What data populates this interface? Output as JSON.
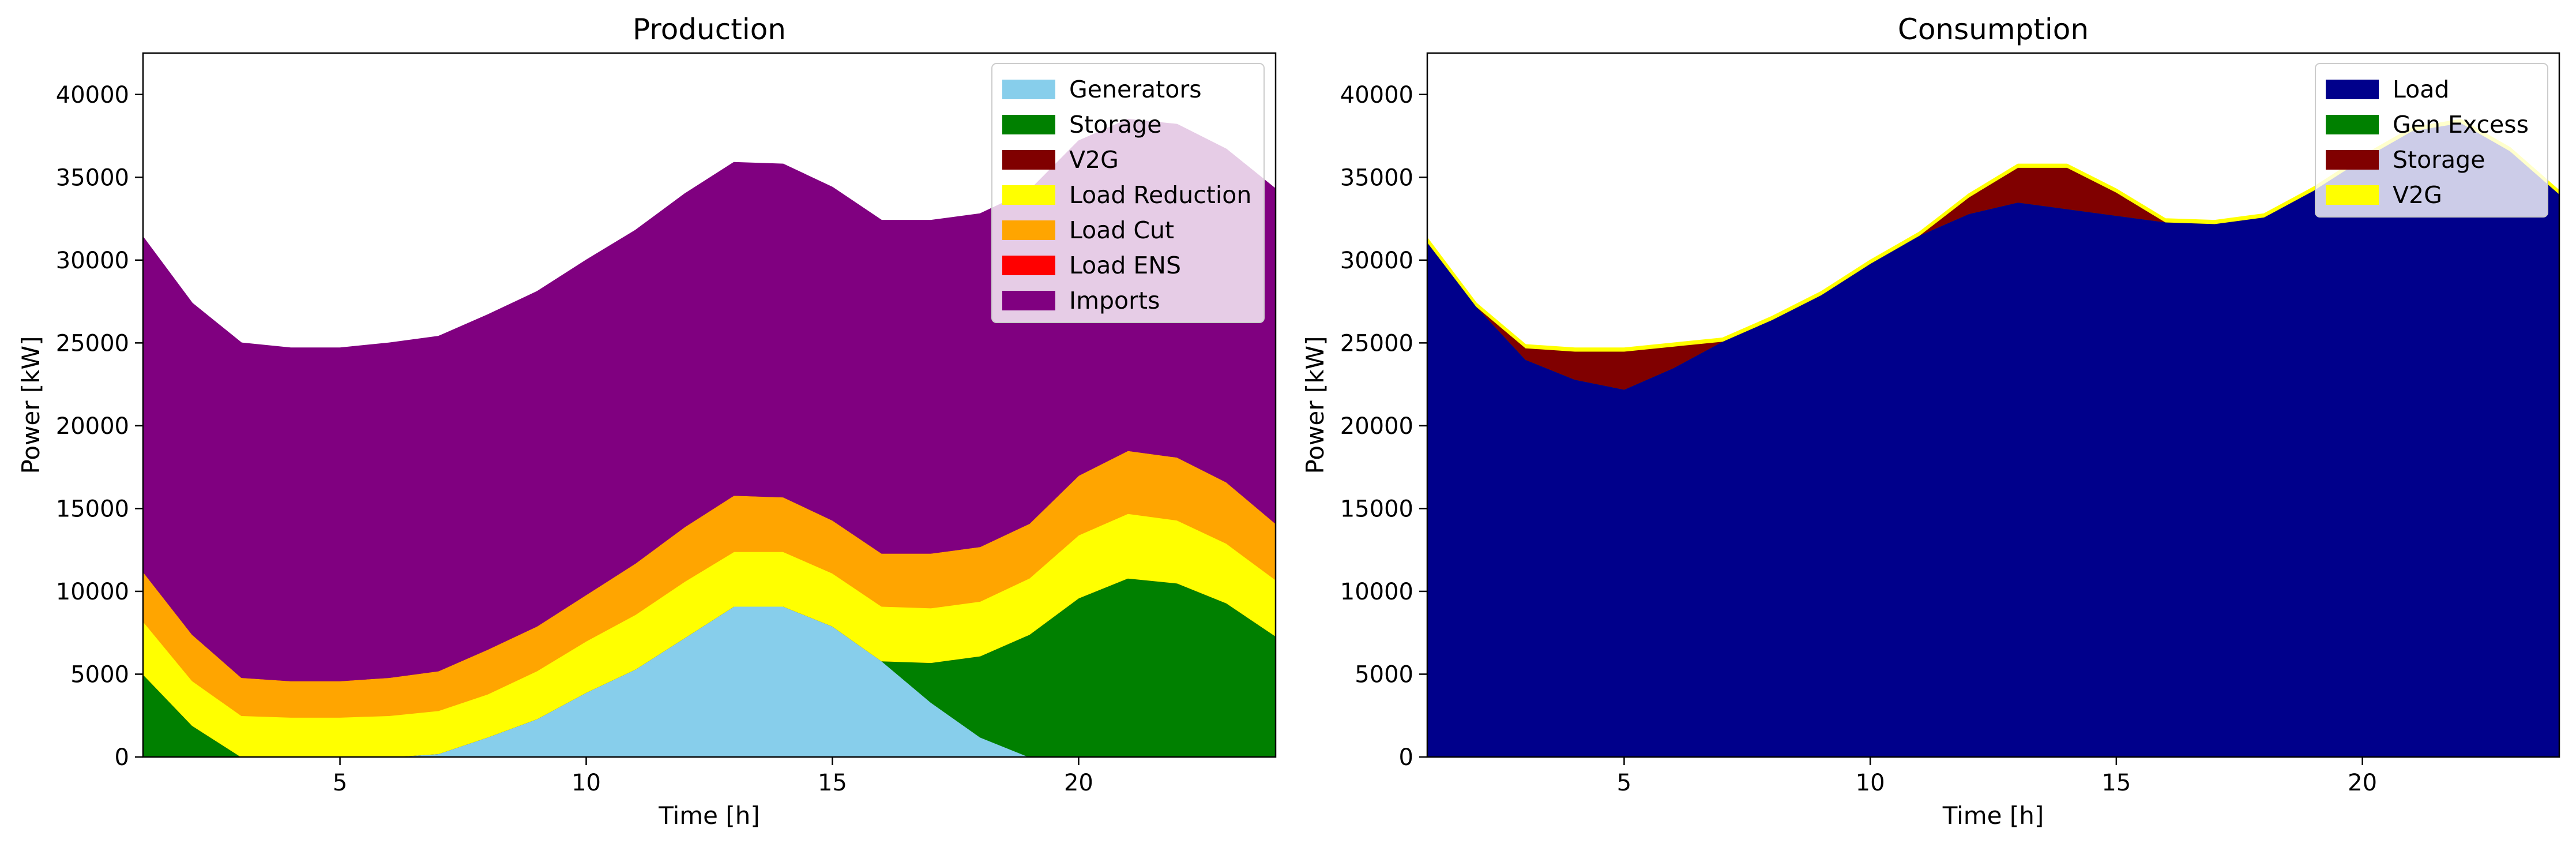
{
  "chart_data": [
    {
      "type": "area",
      "stacked": true,
      "title": "Production",
      "xlabel": "Time [h]",
      "ylabel": "Power [kW]",
      "xlim": [
        1,
        24
      ],
      "ylim": [
        0,
        42500
      ],
      "xticks": [
        5,
        10,
        15,
        20
      ],
      "yticks": [
        0,
        5000,
        10000,
        15000,
        20000,
        25000,
        30000,
        35000,
        40000
      ],
      "legend_position": "top-right",
      "x": [
        1,
        2,
        3,
        4,
        5,
        6,
        7,
        8,
        9,
        10,
        11,
        12,
        13,
        14,
        15,
        16,
        17,
        18,
        19,
        20,
        21,
        22,
        23,
        24
      ],
      "series": [
        {
          "name": "Generators",
          "color": "#87ceeb",
          "values": [
            0,
            0,
            0,
            0,
            0,
            0,
            200,
            1200,
            2300,
            3900,
            5300,
            7200,
            9100,
            9100,
            7900,
            5800,
            3300,
            1200,
            0,
            0,
            0,
            0,
            0,
            0
          ]
        },
        {
          "name": "Storage",
          "color": "#008000",
          "values": [
            5000,
            1900,
            0,
            0,
            0,
            0,
            0,
            0,
            0,
            0,
            0,
            0,
            0,
            0,
            0,
            0,
            2400,
            4900,
            7400,
            9600,
            10800,
            10500,
            9300,
            7300
          ]
        },
        {
          "name": "V2G",
          "color": "#800000",
          "values": [
            0,
            0,
            0,
            0,
            0,
            0,
            0,
            0,
            0,
            0,
            0,
            0,
            0,
            0,
            0,
            0,
            0,
            0,
            0,
            0,
            0,
            0,
            0,
            0
          ]
        },
        {
          "name": "Load Reduction",
          "color": "#ffff00",
          "values": [
            3200,
            2700,
            2500,
            2400,
            2400,
            2500,
            2600,
            2600,
            2900,
            3100,
            3300,
            3400,
            3300,
            3300,
            3200,
            3300,
            3300,
            3300,
            3400,
            3800,
            3900,
            3800,
            3600,
            3400
          ]
        },
        {
          "name": "Load Cut",
          "color": "#ffa500",
          "values": [
            3000,
            2800,
            2300,
            2200,
            2200,
            2300,
            2400,
            2700,
            2700,
            2800,
            3100,
            3300,
            3400,
            3300,
            3200,
            3200,
            3300,
            3300,
            3300,
            3600,
            3800,
            3800,
            3700,
            3400
          ]
        },
        {
          "name": "Load ENS",
          "color": "#ff0000",
          "values": [
            0,
            0,
            0,
            0,
            0,
            0,
            0,
            0,
            0,
            0,
            0,
            0,
            0,
            0,
            0,
            0,
            0,
            0,
            0,
            0,
            0,
            0,
            0,
            0
          ]
        },
        {
          "name": "Imports",
          "color": "#800080",
          "values": [
            20200,
            20000,
            20200,
            20100,
            20100,
            20200,
            20200,
            20200,
            20200,
            20200,
            20100,
            20100,
            20100,
            20100,
            20100,
            20100,
            20100,
            20100,
            20100,
            20200,
            20000,
            20100,
            20100,
            20200
          ]
        }
      ]
    },
    {
      "type": "area",
      "stacked": true,
      "title": "Consumption",
      "xlabel": "Time [h]",
      "ylabel": "Power [kW]",
      "xlim": [
        1,
        24
      ],
      "ylim": [
        0,
        42500
      ],
      "xticks": [
        5,
        10,
        15,
        20
      ],
      "yticks": [
        0,
        5000,
        10000,
        15000,
        20000,
        25000,
        30000,
        35000,
        40000
      ],
      "legend_position": "top-right",
      "x": [
        1,
        2,
        3,
        4,
        5,
        6,
        7,
        8,
        9,
        10,
        11,
        12,
        13,
        14,
        15,
        16,
        17,
        18,
        19,
        20,
        21,
        22,
        23,
        24
      ],
      "series": [
        {
          "name": "Load",
          "color": "#00008b",
          "values": [
            31100,
            27200,
            24000,
            22800,
            22200,
            23500,
            25100,
            26400,
            27900,
            29800,
            31500,
            32800,
            33500,
            33100,
            32700,
            32300,
            32200,
            32600,
            34200,
            36100,
            37800,
            38300,
            36600,
            34000
          ]
        },
        {
          "name": "Gen Excess",
          "color": "#008000",
          "values": [
            0,
            0,
            0,
            0,
            0,
            0,
            0,
            0,
            0,
            0,
            0,
            0,
            0,
            0,
            0,
            0,
            0,
            0,
            0,
            0,
            0,
            0,
            0,
            0
          ]
        },
        {
          "name": "Storage",
          "color": "#800000",
          "values": [
            0,
            0,
            700,
            1700,
            2300,
            1300,
            0,
            0,
            0,
            0,
            0,
            1000,
            2100,
            2500,
            1400,
            0,
            0,
            0,
            0,
            0,
            0,
            0,
            0,
            0
          ]
        },
        {
          "name": "V2G",
          "color": "#ffff00",
          "values": [
            250,
            200,
            200,
            200,
            200,
            200,
            200,
            200,
            200,
            200,
            200,
            200,
            200,
            200,
            200,
            200,
            200,
            200,
            200,
            200,
            200,
            200,
            200,
            200
          ]
        }
      ]
    }
  ]
}
